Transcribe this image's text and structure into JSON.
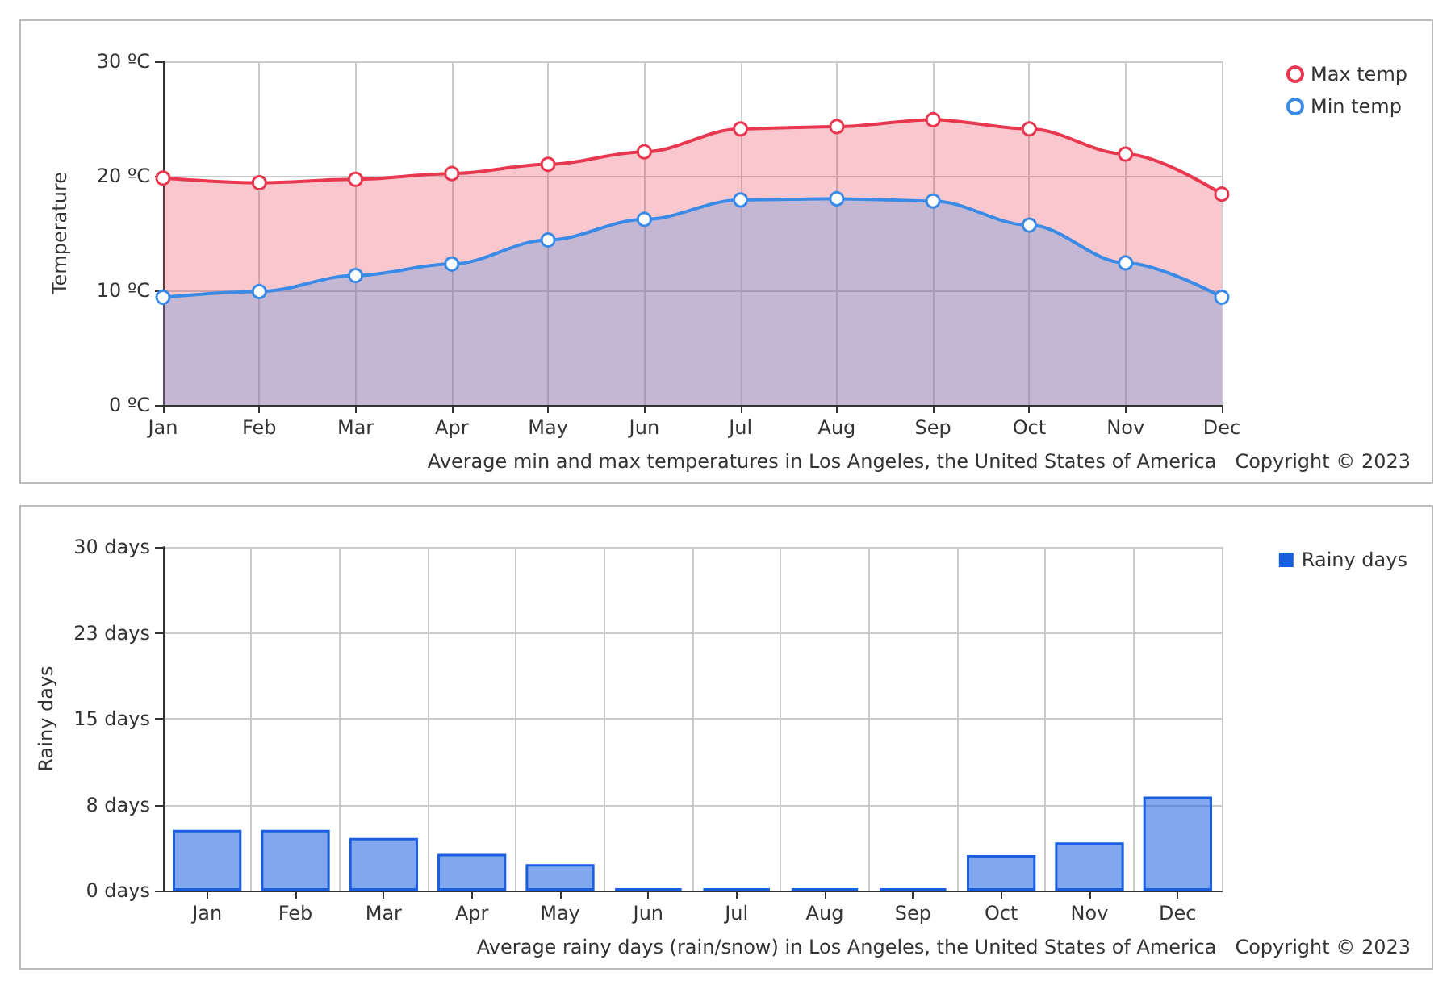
{
  "chart_data": [
    {
      "type": "area",
      "ylabel": "Temperature",
      "categories": [
        "Jan",
        "Feb",
        "Mar",
        "Apr",
        "May",
        "Jun",
        "Jul",
        "Aug",
        "Sep",
        "Oct",
        "Nov",
        "Dec"
      ],
      "series": [
        {
          "name": "Max temp",
          "color": "#e8384f",
          "values": [
            19.8,
            19.4,
            19.7,
            20.2,
            21.0,
            22.1,
            24.1,
            24.3,
            24.9,
            24.1,
            21.9,
            18.4
          ]
        },
        {
          "name": "Min temp",
          "color": "#3b8be6",
          "values": [
            9.4,
            9.9,
            11.3,
            12.3,
            14.4,
            16.2,
            17.9,
            18.0,
            17.8,
            15.7,
            12.4,
            9.4
          ]
        }
      ],
      "ylim": [
        0,
        30
      ],
      "yticks": [
        {
          "value": 0,
          "label": "0 ºC"
        },
        {
          "value": 10,
          "label": "10 ºC"
        },
        {
          "value": 20,
          "label": "20 ºC"
        },
        {
          "value": 30,
          "label": "30 ºC"
        }
      ],
      "grid": true,
      "legend": "top right",
      "marker": "circle",
      "annotations": [
        "Average min and max temperatures in Los Angeles, the United States of America",
        "Copyright © 2023"
      ]
    },
    {
      "type": "bar",
      "ylabel": "Rainy days",
      "categories": [
        "Jan",
        "Feb",
        "Mar",
        "Apr",
        "May",
        "Jun",
        "Jul",
        "Aug",
        "Sep",
        "Oct",
        "Nov",
        "Dec"
      ],
      "series": [
        {
          "name": "Rainy days",
          "color": "#1a5fe0",
          "values": [
            5.3,
            5.3,
            4.6,
            3.2,
            2.3,
            0.2,
            0.2,
            0.2,
            0.2,
            3.1,
            4.2,
            8.2
          ]
        }
      ],
      "ylim": [
        0,
        30
      ],
      "yticks": [
        {
          "value": 0,
          "label": "0 days"
        },
        {
          "value": 7.5,
          "label": "8 days"
        },
        {
          "value": 15,
          "label": "15 days"
        },
        {
          "value": 22.5,
          "label": "23 days"
        },
        {
          "value": 30,
          "label": "30 days"
        }
      ],
      "grid": true,
      "legend": "top right",
      "annotations": [
        "Average rainy days (rain/snow) in Los Angeles, the United States of America",
        "Copyright © 2023"
      ]
    }
  ]
}
